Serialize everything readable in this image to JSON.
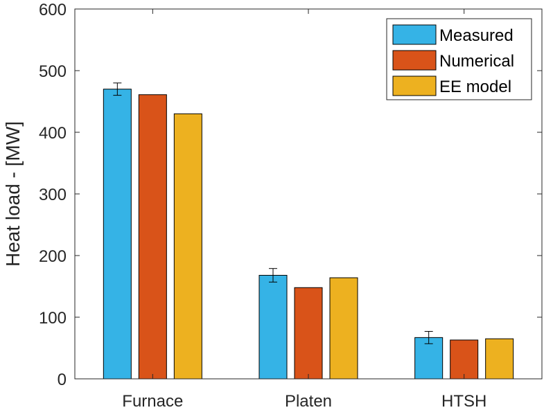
{
  "chart_data": {
    "type": "bar",
    "title": "",
    "xlabel": "",
    "ylabel": "Heat load - [MW]",
    "ylim": [
      0,
      600
    ],
    "yticks": [
      0,
      100,
      200,
      300,
      400,
      500,
      600
    ],
    "categories": [
      "Furnace",
      "Platen",
      "HTSH"
    ],
    "series": [
      {
        "name": "Measured",
        "color": "#35b3e6",
        "values": [
          470,
          168,
          67
        ],
        "error": [
          10,
          11,
          10
        ]
      },
      {
        "name": "Numerical",
        "color": "#d95319",
        "values": [
          461,
          148,
          63
        ]
      },
      {
        "name": "EE model",
        "color": "#edb120",
        "values": [
          430,
          164,
          65
        ]
      }
    ],
    "legend_position": "top-right",
    "grid": false
  }
}
